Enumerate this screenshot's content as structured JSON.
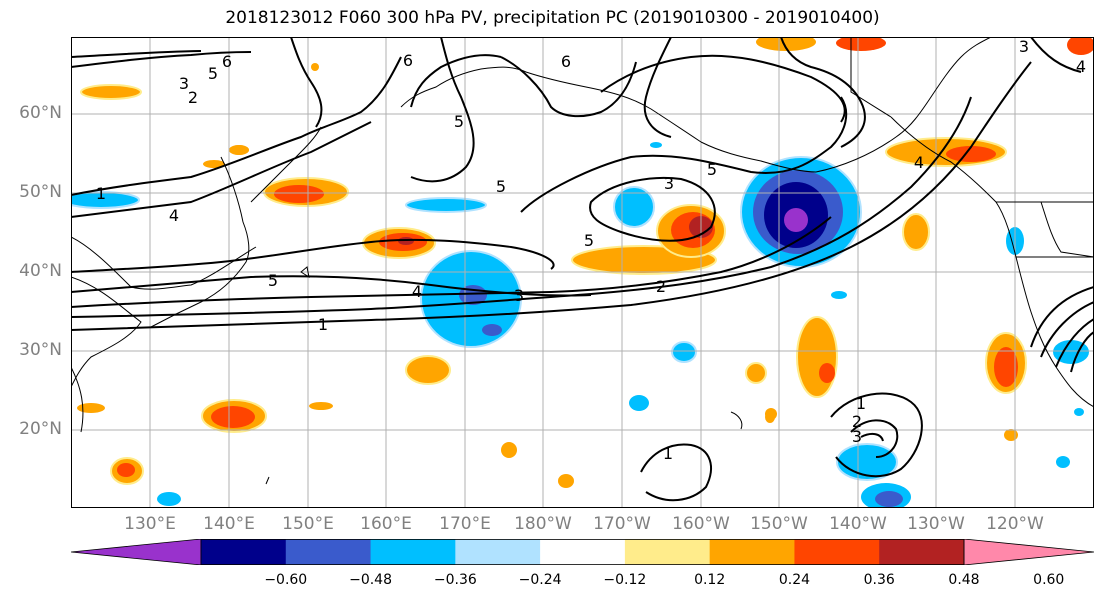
{
  "title": "2018123012 F060 300 hPa PV, precipitation PC (2019010300 - 2019010400)",
  "lat_labels": [
    "60°N",
    "50°N",
    "40°N",
    "30°N",
    "20°N"
  ],
  "lon_labels": [
    "130°E",
    "140°E",
    "150°E",
    "160°E",
    "170°E",
    "180°W",
    "170°W",
    "160°W",
    "150°W",
    "140°W",
    "130°W",
    "120°W"
  ],
  "colorbar": {
    "colors": [
      "#9932cc",
      "#00008b",
      "#3a5bcc",
      "#00bfff",
      "#b0e2ff",
      "#ffffff",
      "#ffec8b",
      "#ffa500",
      "#ff4500",
      "#b22222",
      "#ff88aa"
    ],
    "tick_labels": [
      "−0.60",
      "−0.48",
      "−0.36",
      "−0.24",
      "−0.12",
      "0.12",
      "0.24",
      "0.36",
      "0.48",
      "0.60"
    ]
  },
  "contour_labels": [
    "6",
    "5",
    "3",
    "2",
    "6",
    "5",
    "6",
    "1",
    "4",
    "5",
    "5",
    "3",
    "5",
    "5",
    "2",
    "4",
    "3",
    "1",
    "4",
    "1",
    "2",
    "3",
    "1",
    "3",
    "4"
  ],
  "colors": {
    "contour": "#000000",
    "grid": "#b0b0b0",
    "coast": "#000000",
    "axis_label": "#808080"
  }
}
